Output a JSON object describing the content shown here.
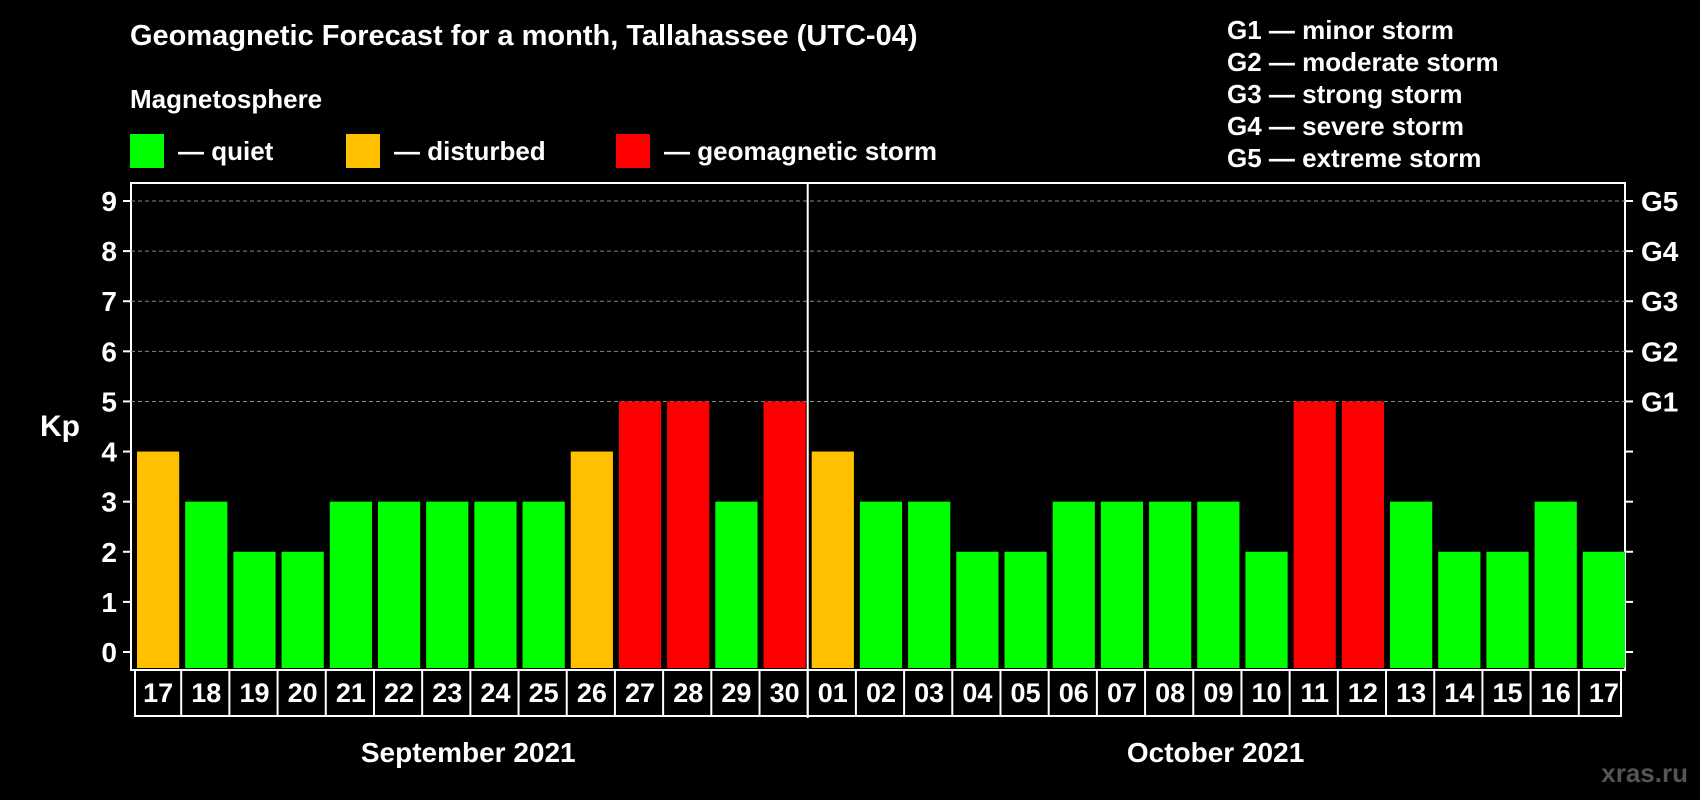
{
  "title": "Geomagnetic Forecast for a month, Tallahassee (UTC-04)",
  "legend": {
    "heading": "Magnetosphere",
    "items": [
      {
        "label": "— quiet",
        "color": "#00ff00"
      },
      {
        "label": "— disturbed",
        "color": "#ffc000"
      },
      {
        "label": "— geomagnetic storm",
        "color": "#ff0000"
      }
    ]
  },
  "storm_scale": [
    "G1 — minor storm",
    "G2 — moderate storm",
    "G3 — strong storm",
    "G4 — severe storm",
    "G5 — extreme storm"
  ],
  "watermark": "xras.ru",
  "chart_data": {
    "type": "bar",
    "title": "Geomagnetic Forecast for a month, Tallahassee (UTC-04)",
    "ylabel": "Kp",
    "ylim": [
      0,
      9
    ],
    "yticks": [
      0,
      1,
      2,
      3,
      4,
      5,
      6,
      7,
      8,
      9
    ],
    "right_axis_labels": [
      {
        "kp": 5,
        "label": "G1"
      },
      {
        "kp": 6,
        "label": "G2"
      },
      {
        "kp": 7,
        "label": "G3"
      },
      {
        "kp": 8,
        "label": "G4"
      },
      {
        "kp": 9,
        "label": "G5"
      }
    ],
    "categories": [
      "17",
      "18",
      "19",
      "20",
      "21",
      "22",
      "23",
      "24",
      "25",
      "26",
      "27",
      "28",
      "29",
      "30",
      "01",
      "02",
      "03",
      "04",
      "05",
      "06",
      "07",
      "08",
      "09",
      "10",
      "11",
      "12",
      "13",
      "14",
      "15",
      "16",
      "17"
    ],
    "values": [
      4,
      3,
      2,
      2,
      3,
      3,
      3,
      3,
      3,
      4,
      5,
      5,
      3,
      5,
      4,
      3,
      3,
      2,
      2,
      3,
      3,
      3,
      3,
      2,
      5,
      5,
      3,
      2,
      2,
      3,
      2
    ],
    "months": [
      {
        "label": "September 2021",
        "days": 14
      },
      {
        "label": "October 2021",
        "days": 17
      }
    ],
    "colors": {
      "quiet": "#00ff00",
      "disturbed": "#ffc000",
      "storm": "#ff0000"
    },
    "grid": true
  }
}
